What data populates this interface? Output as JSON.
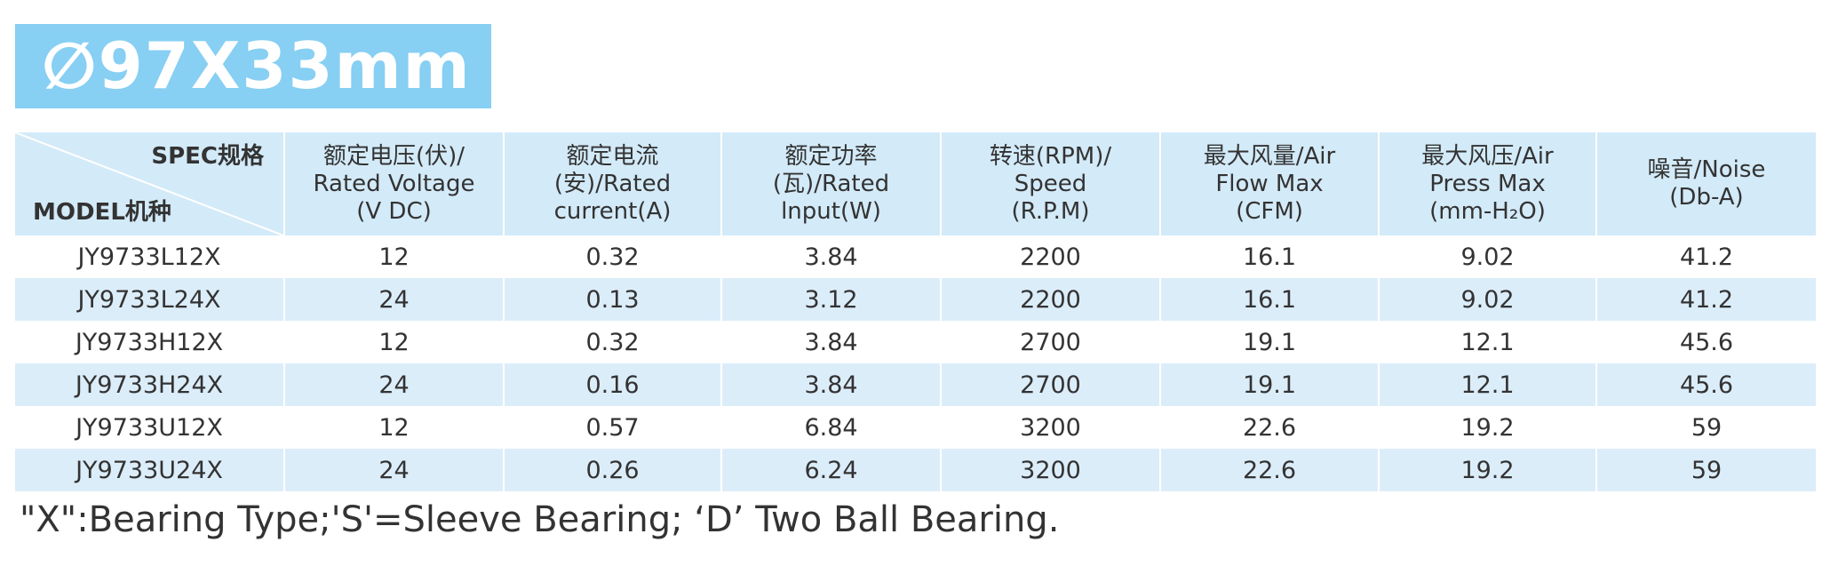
{
  "title": "∅97X33mm",
  "table": {
    "corner": {
      "top": "SPEC规格",
      "bottom": "MODEL机种"
    },
    "headers": [
      [
        "额定电压(伏)/",
        "Rated Voltage",
        "(V DC)"
      ],
      [
        "额定电流",
        "(安)/Rated",
        "current(A)"
      ],
      [
        "额定功率",
        "(瓦)/Rated",
        "lnput(W)"
      ],
      [
        "转速(RPM)/",
        "Speed",
        "(R.P.M)"
      ],
      [
        "最大风量/Air",
        "Flow Max",
        "(CFM)"
      ],
      [
        "最大风压/Air",
        "Press Max",
        "(mm-H₂O)"
      ],
      [
        "噪音/Noise",
        "(Db-A)"
      ]
    ],
    "rows": [
      [
        "JY9733L12X",
        "12",
        "0.32",
        "3.84",
        "2200",
        "16.1",
        "9.02",
        "41.2"
      ],
      [
        "JY9733L24X",
        "24",
        "0.13",
        "3.12",
        "2200",
        "16.1",
        "9.02",
        "41.2"
      ],
      [
        "JY9733H12X",
        "12",
        "0.32",
        "3.84",
        "2700",
        "19.1",
        "12.1",
        "45.6"
      ],
      [
        "JY9733H24X",
        "24",
        "0.16",
        "3.84",
        "2700",
        "19.1",
        "12.1",
        "45.6"
      ],
      [
        "JY9733U12X",
        "12",
        "0.57",
        "6.84",
        "3200",
        "22.6",
        "19.2",
        "59"
      ],
      [
        "JY9733U24X",
        "24",
        "0.26",
        "6.24",
        "3200",
        "22.6",
        "19.2",
        "59"
      ]
    ]
  },
  "footnote": "\"X\":Bearing Type;'S'=Sleeve Bearing; ‘D’ Two Ball Bearing."
}
